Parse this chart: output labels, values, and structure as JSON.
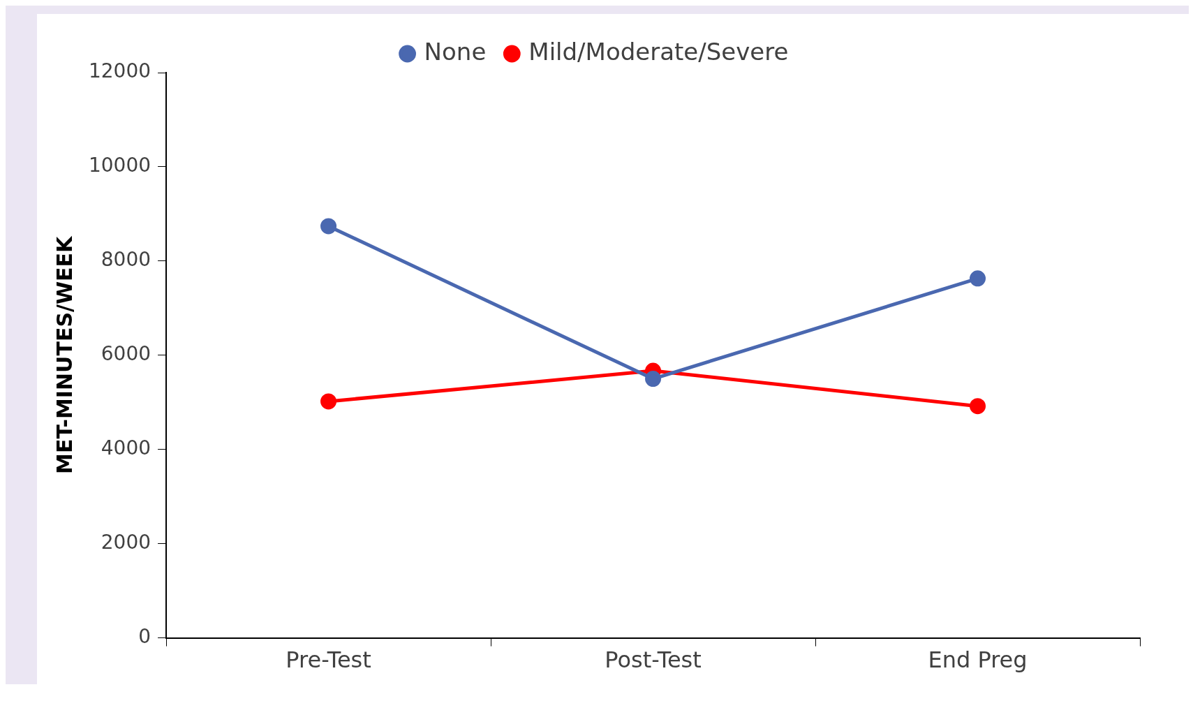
{
  "chart_data": {
    "type": "line",
    "categories": [
      "Pre-Test",
      "Post-Test",
      "End Preg"
    ],
    "series": [
      {
        "name": "None",
        "color": "#4a68b0",
        "values": [
          8740,
          5500,
          7630
        ]
      },
      {
        "name": "Mild/Moderate/Severe",
        "color": "#ff0000",
        "values": [
          5020,
          5670,
          4920
        ]
      }
    ],
    "ylabel": "MET-MINUTES/WEEK",
    "ylim": [
      0,
      12000
    ],
    "yticks": [
      0,
      2000,
      4000,
      6000,
      8000,
      10000,
      12000
    ],
    "grid": false,
    "legend": "top",
    "marker": "circle",
    "line_style": "solid"
  }
}
